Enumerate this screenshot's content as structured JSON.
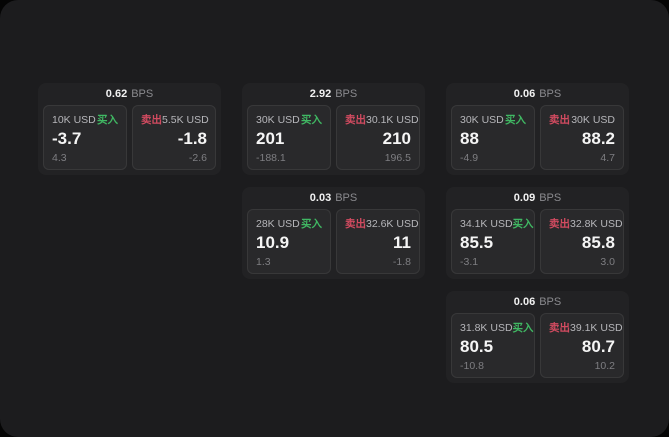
{
  "theme": {
    "backdrop": "#050505",
    "panel_bg": "#1c1c1e",
    "card_bg": "#222224",
    "tile_bg": "#29292b",
    "accent_green": "#40b863",
    "accent_red": "#d24b60"
  },
  "cards": [
    {
      "row": 1,
      "col": 1,
      "bps_value": "0.62",
      "bps_unit": "BPS",
      "buy": {
        "amount": "10K USD",
        "side_label": "买入",
        "price": "-3.7",
        "delta": "4.3"
      },
      "sell": {
        "side_label": "卖出",
        "amount": "5.5K USD",
        "price": "-1.8",
        "delta": "-2.6"
      }
    },
    {
      "row": 1,
      "col": 2,
      "bps_value": "2.92",
      "bps_unit": "BPS",
      "buy": {
        "amount": "30K USD",
        "side_label": "买入",
        "price": "201",
        "delta": "-188.1"
      },
      "sell": {
        "side_label": "卖出",
        "amount": "30.1K USD",
        "price": "210",
        "delta": "196.5"
      }
    },
    {
      "row": 1,
      "col": 3,
      "bps_value": "0.06",
      "bps_unit": "BPS",
      "buy": {
        "amount": "30K USD",
        "side_label": "买入",
        "price": "88",
        "delta": "-4.9"
      },
      "sell": {
        "side_label": "卖出",
        "amount": "30K USD",
        "price": "88.2",
        "delta": "4.7"
      }
    },
    {
      "row": 2,
      "col": 2,
      "bps_value": "0.03",
      "bps_unit": "BPS",
      "buy": {
        "amount": "28K USD",
        "side_label": "买入",
        "price": "10.9",
        "delta": "1.3"
      },
      "sell": {
        "side_label": "卖出",
        "amount": "32.6K USD",
        "price": "11",
        "delta": "-1.8"
      }
    },
    {
      "row": 2,
      "col": 3,
      "bps_value": "0.09",
      "bps_unit": "BPS",
      "buy": {
        "amount": "34.1K USD",
        "side_label": "买入",
        "price": "85.5",
        "delta": "-3.1"
      },
      "sell": {
        "side_label": "卖出",
        "amount": "32.8K USD",
        "price": "85.8",
        "delta": "3.0"
      }
    },
    {
      "row": 3,
      "col": 3,
      "bps_value": "0.06",
      "bps_unit": "BPS",
      "buy": {
        "amount": "31.8K USD",
        "side_label": "买入",
        "price": "80.5",
        "delta": "-10.8"
      },
      "sell": {
        "side_label": "卖出",
        "amount": "39.1K USD",
        "price": "80.7",
        "delta": "10.2"
      }
    }
  ]
}
